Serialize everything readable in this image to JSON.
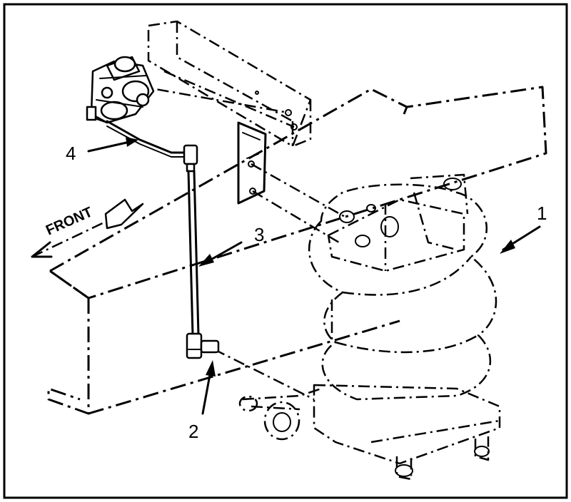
{
  "diagram": {
    "front_label": "FRONT",
    "callouts": [
      {
        "id": "1",
        "text": "1"
      },
      {
        "id": "2",
        "text": "2"
      },
      {
        "id": "3",
        "text": "3"
      },
      {
        "id": "4",
        "text": "4"
      }
    ]
  }
}
